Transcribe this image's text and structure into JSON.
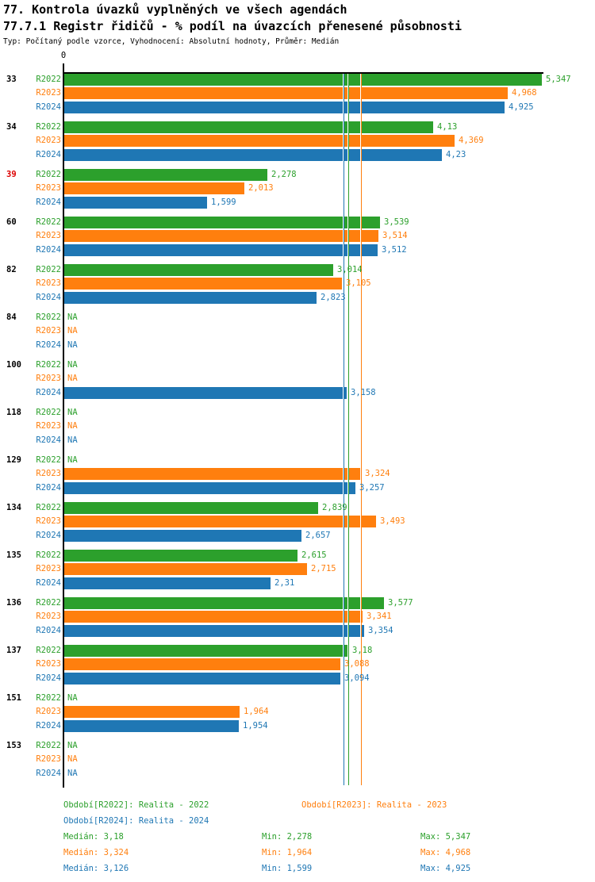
{
  "header": {
    "title1": "77. Kontrola úvazků vyplněných ve všech agendách",
    "title2": "77.7.1 Registr řidičů - % podíl na úvazcích přenesené působnosti",
    "subtitle": "Typ: Počítaný podle vzorce, Vyhodnocení: Absolutní hodnoty, Průměr: Medián"
  },
  "chart_data": {
    "type": "bar",
    "orientation": "horizontal",
    "axis_zero_label": "0",
    "na_label": "NA",
    "xlim": [
      0,
      5.347
    ],
    "categories": [
      "33",
      "34",
      "39",
      "60",
      "82",
      "84",
      "100",
      "118",
      "129",
      "134",
      "135",
      "136",
      "137",
      "151",
      "153"
    ],
    "highlighted_category": "39",
    "colors": {
      "green": "#2CA02C",
      "orange": "#FF7F0E",
      "blue": "#1F77B4",
      "highlight": "#DD0000",
      "axis": "#000000"
    },
    "series": [
      {
        "name": "R2022",
        "color": "#2CA02C",
        "median": 3.18,
        "values": [
          5.347,
          4.13,
          2.278,
          3.539,
          3.014,
          null,
          null,
          null,
          null,
          2.839,
          2.615,
          3.577,
          3.18,
          null,
          null
        ],
        "labels": [
          "5,347",
          "4,13",
          "2,278",
          "3,539",
          "3,014",
          "NA",
          "NA",
          "NA",
          "NA",
          "2,839",
          "2,615",
          "3,577",
          "3,18",
          "NA",
          "NA"
        ]
      },
      {
        "name": "R2023",
        "color": "#FF7F0E",
        "median": 3.324,
        "values": [
          4.968,
          4.369,
          2.013,
          3.514,
          3.105,
          null,
          null,
          null,
          3.324,
          3.493,
          2.715,
          3.341,
          3.088,
          1.964,
          null
        ],
        "labels": [
          "4,968",
          "4,369",
          "2,013",
          "3,514",
          "3,105",
          "NA",
          "NA",
          "NA",
          "3,324",
          "3,493",
          "2,715",
          "3,341",
          "3,088",
          "1,964",
          "NA"
        ]
      },
      {
        "name": "R2024",
        "color": "#1F77B4",
        "median": 3.126,
        "values": [
          4.925,
          4.23,
          1.599,
          3.512,
          2.823,
          null,
          3.158,
          null,
          3.257,
          2.657,
          2.31,
          3.354,
          3.094,
          1.954,
          null
        ],
        "labels": [
          "4,925",
          "4,23",
          "1,599",
          "3,512",
          "2,823",
          "NA",
          "3,158",
          "NA",
          "3,257",
          "2,657",
          "2,31",
          "3,354",
          "3,094",
          "1,954",
          "NA"
        ]
      }
    ]
  },
  "legend": {
    "r2022": "Období[R2022]: Realita - 2022",
    "r2023": "Období[R2023]: Realita - 2023",
    "r2024": "Období[R2024]: Realita - 2024"
  },
  "stats": {
    "r2022": {
      "median": "Medián: 3,18",
      "min": "Min: 2,278",
      "max": "Max: 5,347"
    },
    "r2023": {
      "median": "Medián: 3,324",
      "min": "Min: 1,964",
      "max": "Max: 4,968"
    },
    "r2024": {
      "median": "Medián: 3,126",
      "min": "Min: 1,599",
      "max": "Max: 4,925"
    }
  }
}
